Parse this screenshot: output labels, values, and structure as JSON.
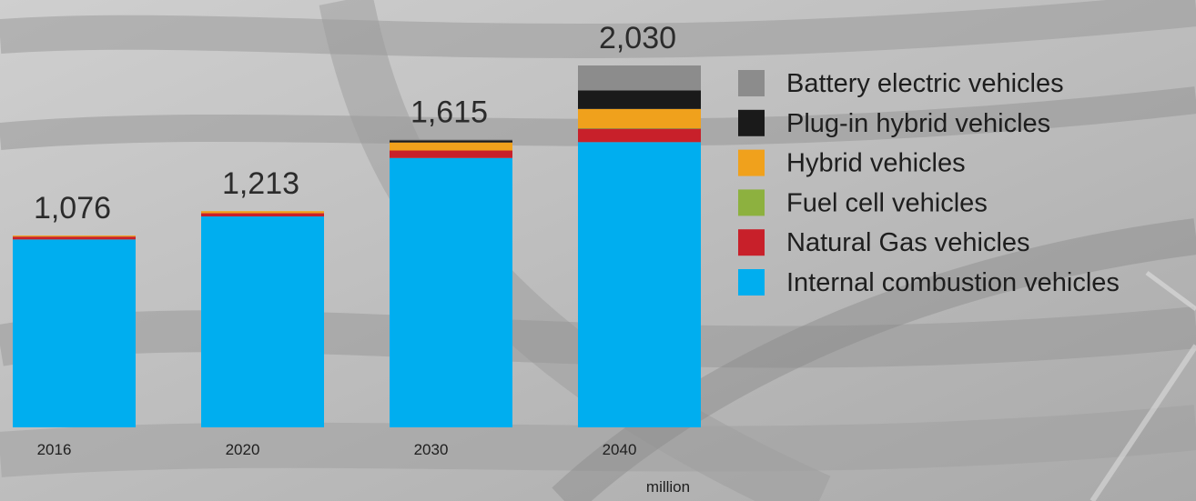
{
  "chart_data": {
    "type": "bar",
    "stacked": true,
    "categories": [
      "2016",
      "2020",
      "2030",
      "2040"
    ],
    "totals": [
      1076,
      1213,
      1615,
      2030
    ],
    "total_labels": [
      "1,076",
      "1,213",
      "1,615",
      "2,030"
    ],
    "unit": "million",
    "series": [
      {
        "name": "Internal combustion vehicles",
        "color": "#00aeef",
        "values": [
          1054,
          1183,
          1511,
          1600
        ]
      },
      {
        "name": "Natural Gas vehicles",
        "color": "#c8202a",
        "values": [
          16,
          18,
          42,
          75
        ]
      },
      {
        "name": "Fuel cell vehicles",
        "color": "#8db13f",
        "values": [
          0,
          0,
          0,
          3
        ]
      },
      {
        "name": "Hybrid vehicles",
        "color": "#f0a11c",
        "values": [
          6,
          12,
          45,
          108
        ]
      },
      {
        "name": "Plug-in hybrid vehicles",
        "color": "#1a1a1a",
        "values": [
          0,
          0,
          12,
          104
        ]
      },
      {
        "name": "Battery electric vehicles",
        "color": "#8c8c8c",
        "values": [
          0,
          0,
          5,
          140
        ]
      }
    ],
    "legend_order": [
      "Battery electric vehicles",
      "Plug-in hybrid vehicles",
      "Hybrid vehicles",
      "Fuel cell vehicles",
      "Natural Gas vehicles",
      "Internal combustion vehicles"
    ],
    "legend_position": "right",
    "grid": false,
    "ylim": [
      0,
      2030
    ]
  }
}
